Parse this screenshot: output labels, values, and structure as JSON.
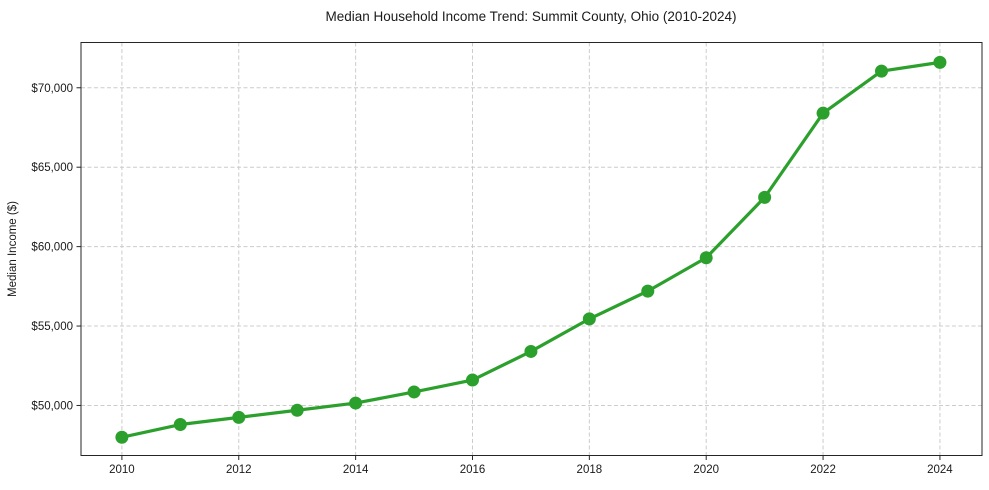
{
  "page": {
    "background": "#ffffff"
  },
  "chart_data": {
    "type": "line",
    "title": "Median Household Income Trend: Summit County, Ohio (2010-2024)",
    "xlabel": "",
    "ylabel": "Median Income ($)",
    "x": [
      2010,
      2011,
      2012,
      2013,
      2014,
      2015,
      2016,
      2017,
      2018,
      2019,
      2020,
      2021,
      2022,
      2023,
      2024
    ],
    "series": [
      {
        "name": "Median Household Income",
        "color": "#2ca02c",
        "values": [
          48000,
          48800,
          49250,
          49700,
          50150,
          50850,
          51600,
          53400,
          55450,
          57200,
          59300,
          63100,
          68400,
          71050,
          71600
        ]
      }
    ],
    "x_ticks": [
      2010,
      2012,
      2014,
      2016,
      2018,
      2020,
      2022,
      2024
    ],
    "x_tick_labels": [
      "2010",
      "2012",
      "2014",
      "2016",
      "2018",
      "2020",
      "2022",
      "2024"
    ],
    "y_ticks": [
      50000,
      55000,
      60000,
      65000,
      70000
    ],
    "y_tick_labels": [
      "$50,000",
      "$55,000",
      "$60,000",
      "$65,000",
      "$70,000"
    ],
    "xlim": [
      2009.3,
      2024.72
    ],
    "ylim": [
      46850,
      72850
    ],
    "grid": true,
    "grid_style": "dashed",
    "grid_color": "#cccccc",
    "legend_position": "none",
    "line_width": 3.2,
    "marker": "circle",
    "marker_radius": 6.5,
    "spine_color": "#262626",
    "tick_color": "#262626",
    "text_color": "#1a1a1a"
  }
}
